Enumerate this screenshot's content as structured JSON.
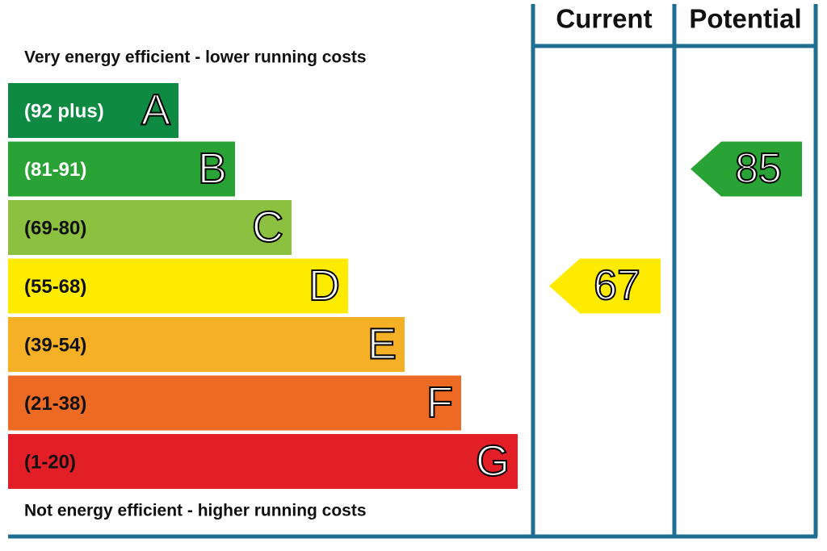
{
  "headers": {
    "current": "Current",
    "potential": "Potential"
  },
  "top_note": "Very energy efficient - lower running costs",
  "bottom_note": "Not energy efficient - higher running costs",
  "bands": [
    {
      "range": "(92 plus)",
      "letter": "A",
      "color": "#0e8a43",
      "text_color": "#ffffff"
    },
    {
      "range": "(81-91)",
      "letter": "B",
      "color": "#2aa336",
      "text_color": "#ffffff"
    },
    {
      "range": "(69-80)",
      "letter": "C",
      "color": "#8cc040",
      "text_color": "#111111"
    },
    {
      "range": "(55-68)",
      "letter": "D",
      "color": "#ffeb00",
      "text_color": "#111111"
    },
    {
      "range": "(39-54)",
      "letter": "E",
      "color": "#f6b026",
      "text_color": "#111111"
    },
    {
      "range": "(21-38)",
      "letter": "F",
      "color": "#ec6a23",
      "text_color": "#111111"
    },
    {
      "range": "(1-20)",
      "letter": "G",
      "color": "#e21e26",
      "text_color": "#111111"
    }
  ],
  "current": {
    "value": 67,
    "color": "#ffeb00"
  },
  "potential": {
    "value": 85,
    "color": "#2aa336"
  }
}
